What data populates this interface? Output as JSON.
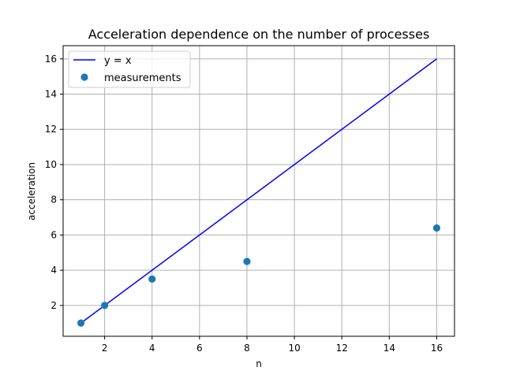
{
  "chart_data": {
    "type": "scatter",
    "title": "Acceleration dependence on the number of processes",
    "xlabel": "n",
    "ylabel": "acceleration",
    "xlim": [
      0.25,
      16.75
    ],
    "ylim": [
      0.25,
      16.75
    ],
    "xticks": [
      2,
      4,
      6,
      8,
      10,
      12,
      14,
      16
    ],
    "yticks": [
      2,
      4,
      6,
      8,
      10,
      12,
      14,
      16
    ],
    "grid": true,
    "legend_position": "top-left",
    "series": [
      {
        "name": "y = x",
        "kind": "line",
        "color": "#0000ff",
        "x": [
          1,
          16
        ],
        "y": [
          1,
          16
        ]
      },
      {
        "name": "measurements",
        "kind": "scatter",
        "color": "#1f77b4",
        "x": [
          1,
          2,
          4,
          8,
          16
        ],
        "y": [
          1.0,
          2.0,
          3.5,
          4.5,
          6.4
        ]
      }
    ]
  }
}
